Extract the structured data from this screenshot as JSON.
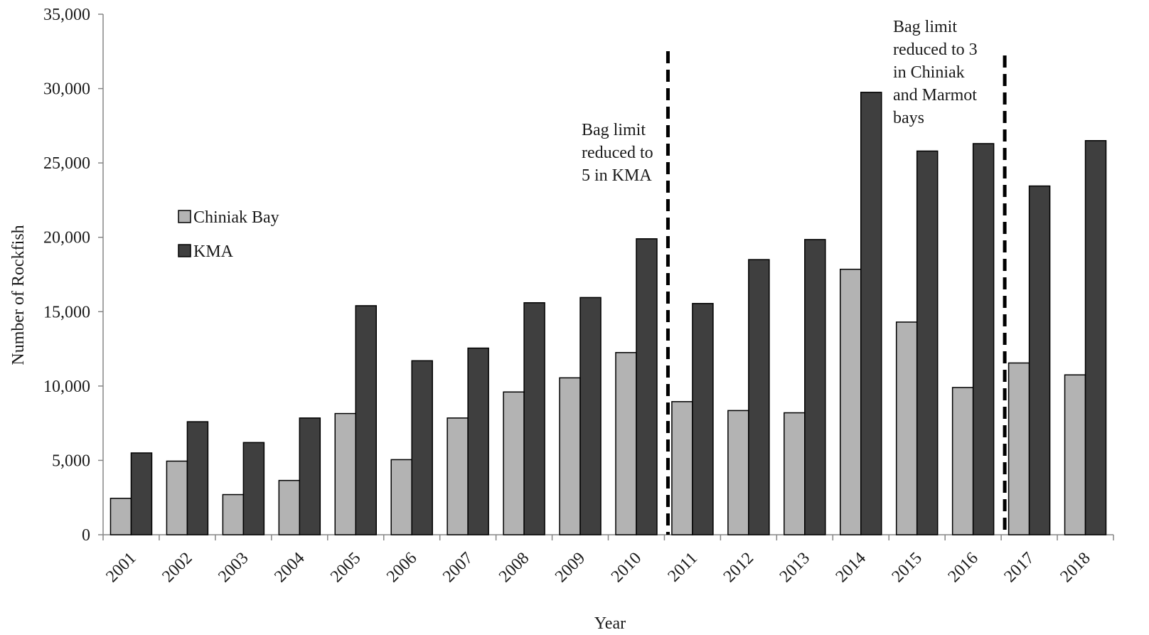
{
  "chart_data": {
    "type": "bar",
    "xlabel": "Year",
    "ylabel": "Number of Rockfish",
    "ylim": [
      0,
      35000
    ],
    "yticks": [
      0,
      5000,
      10000,
      15000,
      20000,
      25000,
      30000,
      35000
    ],
    "ytick_labels": [
      "0",
      "5,000",
      "10,000",
      "15,000",
      "20,000",
      "25,000",
      "30,000",
      "35,000"
    ],
    "grid": false,
    "legend_position": "left",
    "categories": [
      "2001",
      "2002",
      "2003",
      "2004",
      "2005",
      "2006",
      "2007",
      "2008",
      "2009",
      "2010",
      "2011",
      "2012",
      "2013",
      "2014",
      "2015",
      "2016",
      "2017",
      "2018"
    ],
    "series": [
      {
        "name": "Chiniak Bay",
        "color": "#b3b3b3",
        "values": [
          2450,
          4950,
          2700,
          3650,
          8150,
          5050,
          7850,
          9600,
          10550,
          12250,
          8950,
          8350,
          8200,
          17850,
          14300,
          9900,
          11550,
          10750
        ]
      },
      {
        "name": "KMA",
        "color": "#3f3f3f",
        "values": [
          5500,
          7600,
          6200,
          7850,
          15400,
          11700,
          12550,
          15600,
          15950,
          19900,
          15550,
          18500,
          19850,
          29750,
          25800,
          26300,
          23450,
          26500
        ]
      }
    ],
    "annotations": [
      {
        "after_category": "2010",
        "line_style": "dashed",
        "text_lines": [
          "Bag limit",
          "reduced to",
          "5 in KMA"
        ]
      },
      {
        "after_category": "2016",
        "line_style": "dashed",
        "text_lines": [
          "Bag limit",
          "reduced to 3",
          "in Chiniak",
          "and Marmot",
          "bays"
        ]
      }
    ]
  }
}
